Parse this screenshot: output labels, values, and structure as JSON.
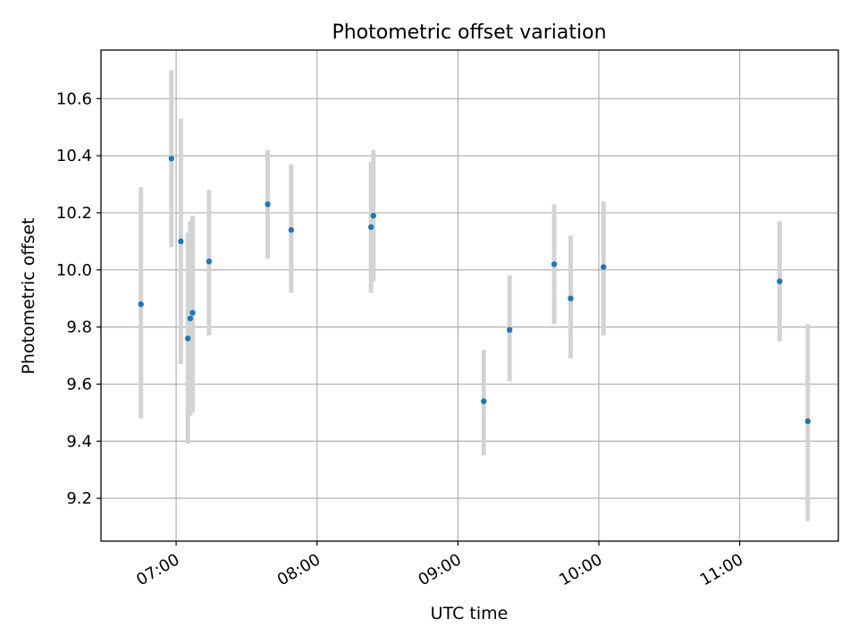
{
  "chart_data": {
    "type": "scatter",
    "title": "Photometric offset variation",
    "xlabel": "UTC time",
    "ylabel": "Photometric offset",
    "xlim": [
      "06:28",
      "11:42"
    ],
    "ylim": [
      9.05,
      10.77
    ],
    "x_ticks": [
      {
        "time": "07:00",
        "label": "07:00"
      },
      {
        "time": "08:00",
        "label": "08:00"
      },
      {
        "time": "09:00",
        "label": "09:00"
      },
      {
        "time": "10:00",
        "label": "10:00"
      },
      {
        "time": "11:00",
        "label": "11:00"
      }
    ],
    "y_ticks": [
      9.2,
      9.4,
      9.6,
      9.8,
      10.0,
      10.2,
      10.4,
      10.6
    ],
    "grid": true,
    "legend": "none",
    "colors": {
      "marker": "#1f77b4",
      "errorbar": "#d3d3d3",
      "grid": "#b0b0b0"
    },
    "points": [
      {
        "time": "06:45",
        "y": 9.88,
        "y_low": 9.48,
        "y_high": 10.29
      },
      {
        "time": "06:58",
        "y": 10.39,
        "y_low": 10.08,
        "y_high": 10.7
      },
      {
        "time": "07:02",
        "y": 10.1,
        "y_low": 9.67,
        "y_high": 10.53
      },
      {
        "time": "07:05",
        "y": 9.76,
        "y_low": 9.39,
        "y_high": 10.13
      },
      {
        "time": "07:06",
        "y": 9.83,
        "y_low": 9.49,
        "y_high": 10.17
      },
      {
        "time": "07:07",
        "y": 9.85,
        "y_low": 9.5,
        "y_high": 10.19
      },
      {
        "time": "07:14",
        "y": 10.03,
        "y_low": 9.77,
        "y_high": 10.28
      },
      {
        "time": "07:39",
        "y": 10.23,
        "y_low": 10.04,
        "y_high": 10.42
      },
      {
        "time": "07:49",
        "y": 10.14,
        "y_low": 9.92,
        "y_high": 10.37
      },
      {
        "time": "08:23",
        "y": 10.15,
        "y_low": 9.92,
        "y_high": 10.38
      },
      {
        "time": "08:24",
        "y": 10.19,
        "y_low": 9.96,
        "y_high": 10.42
      },
      {
        "time": "09:11",
        "y": 9.54,
        "y_low": 9.35,
        "y_high": 9.72
      },
      {
        "time": "09:22",
        "y": 9.79,
        "y_low": 9.61,
        "y_high": 9.98
      },
      {
        "time": "09:41",
        "y": 10.02,
        "y_low": 9.81,
        "y_high": 10.23
      },
      {
        "time": "09:48",
        "y": 9.9,
        "y_low": 9.69,
        "y_high": 10.12
      },
      {
        "time": "10:02",
        "y": 10.01,
        "y_low": 9.77,
        "y_high": 10.24
      },
      {
        "time": "11:17",
        "y": 9.96,
        "y_low": 9.75,
        "y_high": 10.17
      },
      {
        "time": "11:29",
        "y": 9.47,
        "y_low": 9.12,
        "y_high": 9.81
      }
    ]
  }
}
